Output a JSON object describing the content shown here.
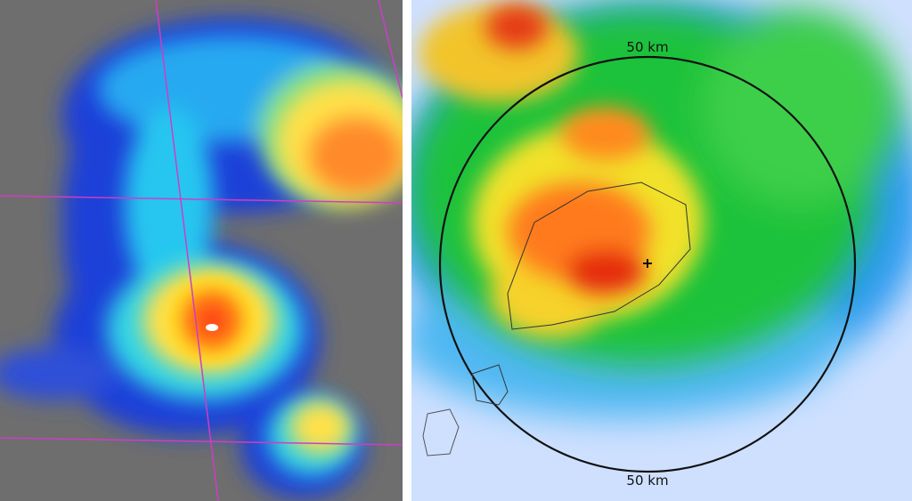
{
  "radar": {
    "range_labels": [
      "50 km",
      "50 km"
    ]
  }
}
